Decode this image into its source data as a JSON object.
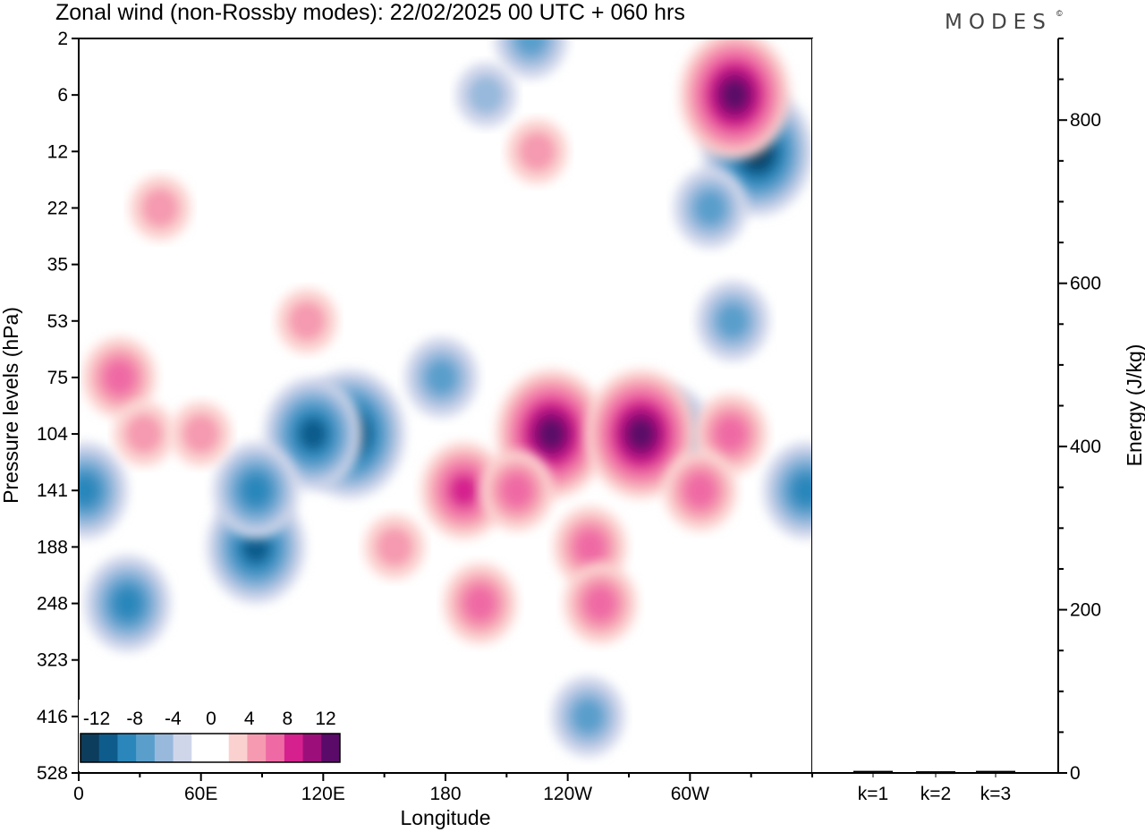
{
  "title": "Zonal wind (non-Rossby modes):  22/02/2025  00 UTC  + 060 hrs",
  "logo": "MODES",
  "logo_mark": "©",
  "colors": {
    "neg": [
      "#0d3d5c",
      "#0e5c8c",
      "#2b87bb",
      "#5a9fcc",
      "#98b9dc",
      "#d0d6ea"
    ],
    "pos": [
      "#fbd1cf",
      "#f59ab0",
      "#ef6aa4",
      "#d5208e",
      "#9c0f7a",
      "#5a0a68"
    ]
  },
  "chart_data": [
    {
      "type": "heatmap",
      "title": "Zonal wind (non-Rossby modes):  22/02/2025  00 UTC  + 060 hrs",
      "xlabel": "Longitude",
      "ylabel": "Pressure levels (hPa)",
      "x_ticks": [
        "0",
        "60E",
        "120E",
        "180",
        "120W",
        "60W"
      ],
      "x_tick_values": [
        0,
        60,
        120,
        180,
        240,
        300
      ],
      "xlim": [
        0,
        360
      ],
      "y_ticks": [
        "2",
        "6",
        "12",
        "22",
        "35",
        "53",
        "75",
        "104",
        "141",
        "188",
        "248",
        "323",
        "416",
        "528"
      ],
      "colorbar": {
        "labels": [
          "-12",
          "-8",
          "-4",
          "0",
          "4",
          "8",
          "12"
        ],
        "levels": [
          -12,
          -10,
          -8,
          -6,
          -4,
          -2,
          2,
          4,
          6,
          8,
          10,
          12
        ]
      },
      "features": [
        {
          "lon": 133,
          "level": 104,
          "value": -11
        },
        {
          "lon": 115,
          "level": 104,
          "value": -9
        },
        {
          "lon": 87,
          "level": 188,
          "value": -10
        },
        {
          "lon": 87,
          "level": 141,
          "value": -8
        },
        {
          "lon": 3,
          "level": 141,
          "value": -8
        },
        {
          "lon": 24,
          "level": 248,
          "value": -7
        },
        {
          "lon": 178,
          "level": 75,
          "value": -5
        },
        {
          "lon": 250,
          "level": 416,
          "value": -6
        },
        {
          "lon": 222,
          "level": 2,
          "value": -6
        },
        {
          "lon": 200,
          "level": 6,
          "value": -4
        },
        {
          "lon": 333,
          "level": 12,
          "value": -11
        },
        {
          "lon": 310,
          "level": 22,
          "value": -5
        },
        {
          "lon": 321,
          "level": 53,
          "value": -5
        },
        {
          "lon": 290,
          "level": 104,
          "value": -8
        },
        {
          "lon": 357,
          "level": 141,
          "value": -8
        },
        {
          "lon": 322,
          "level": 6,
          "value": 12
        },
        {
          "lon": 232,
          "level": 104,
          "value": 11
        },
        {
          "lon": 276,
          "level": 104,
          "value": 11
        },
        {
          "lon": 189,
          "level": 141,
          "value": 7
        },
        {
          "lon": 215,
          "level": 141,
          "value": 6
        },
        {
          "lon": 251,
          "level": 188,
          "value": 6
        },
        {
          "lon": 197,
          "level": 248,
          "value": 6
        },
        {
          "lon": 256,
          "level": 248,
          "value": 5
        },
        {
          "lon": 20,
          "level": 75,
          "value": 5
        },
        {
          "lon": 32,
          "level": 104,
          "value": 4
        },
        {
          "lon": 60,
          "level": 104,
          "value": 4
        },
        {
          "lon": 320,
          "level": 104,
          "value": 5
        },
        {
          "lon": 305,
          "level": 141,
          "value": 5
        },
        {
          "lon": 155,
          "level": 188,
          "value": 4
        },
        {
          "lon": 40,
          "level": 22,
          "value": 4
        },
        {
          "lon": 112,
          "level": 53,
          "value": 4
        },
        {
          "lon": 225,
          "level": 12,
          "value": 4
        }
      ]
    },
    {
      "type": "bar",
      "categories": [
        "k=1",
        "k=2",
        "k=3"
      ],
      "values": [
        1.5,
        1,
        1.5
      ],
      "ylabel": "Energy (J/kg)",
      "ylim": [
        0,
        900
      ],
      "y_ticks": [
        0,
        200,
        400,
        600,
        800
      ]
    }
  ]
}
